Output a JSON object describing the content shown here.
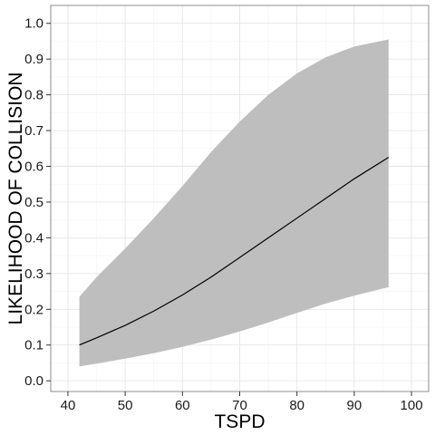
{
  "chart_data": {
    "type": "line",
    "xlabel": "TSPD",
    "ylabel": "LIKELIHOOD OF COLLISION",
    "xlim": [
      37,
      103
    ],
    "ylim": [
      -0.03,
      1.05
    ],
    "x_ticks": [
      40,
      50,
      60,
      70,
      80,
      90,
      100
    ],
    "y_ticks": [
      0.0,
      0.1,
      0.2,
      0.3,
      0.4,
      0.5,
      0.6,
      0.7,
      0.8,
      0.9,
      1.0
    ],
    "y_tick_labels": [
      "0.0",
      "0.1",
      "0.2",
      "0.3",
      "0.4",
      "0.5",
      "0.6",
      "0.7",
      "0.8",
      "0.9",
      "1.0"
    ],
    "grid": true,
    "series": [
      {
        "x": [
          42,
          45,
          50,
          55,
          60,
          65,
          70,
          75,
          80,
          85,
          90,
          96
        ],
        "y": [
          0.1,
          0.12,
          0.155,
          0.195,
          0.24,
          0.29,
          0.345,
          0.4,
          0.455,
          0.51,
          0.565,
          0.625
        ],
        "ci_lower": [
          0.04,
          0.048,
          0.062,
          0.077,
          0.095,
          0.115,
          0.138,
          0.163,
          0.19,
          0.216,
          0.238,
          0.262
        ],
        "ci_upper": [
          0.235,
          0.29,
          0.37,
          0.455,
          0.545,
          0.64,
          0.725,
          0.8,
          0.86,
          0.905,
          0.935,
          0.955
        ]
      }
    ],
    "colors": {
      "line": "#000000",
      "ribbon": "#bebebe",
      "grid_major": "#e6e6e6",
      "grid_minor": "#f3f3f3",
      "panel_border": "#8c8c8c"
    }
  }
}
